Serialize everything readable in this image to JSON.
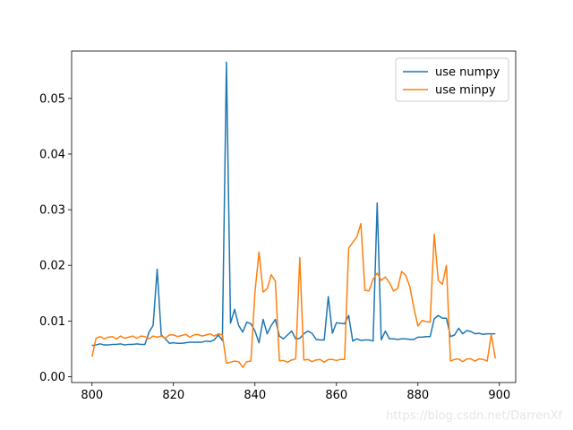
{
  "chart_data": {
    "type": "line",
    "xlim": [
      795,
      904
    ],
    "ylim": [
      -0.00105,
      0.0585
    ],
    "xticks": [
      800,
      820,
      840,
      860,
      880,
      900
    ],
    "yticks": [
      0.0,
      0.01,
      0.02,
      0.03,
      0.04,
      0.05
    ],
    "ytick_labels": [
      "0.00",
      "0.01",
      "0.02",
      "0.03",
      "0.04",
      "0.05"
    ],
    "grid": false,
    "legend_position": "upper-right",
    "x": [
      800,
      801,
      802,
      803,
      804,
      805,
      806,
      807,
      808,
      809,
      810,
      811,
      812,
      813,
      814,
      815,
      816,
      817,
      818,
      819,
      820,
      821,
      822,
      823,
      824,
      825,
      826,
      827,
      828,
      829,
      830,
      831,
      832,
      833,
      834,
      835,
      836,
      837,
      838,
      839,
      840,
      841,
      842,
      843,
      844,
      845,
      846,
      847,
      848,
      849,
      850,
      851,
      852,
      853,
      854,
      855,
      856,
      857,
      858,
      859,
      860,
      861,
      862,
      863,
      864,
      865,
      866,
      867,
      868,
      869,
      870,
      871,
      872,
      873,
      874,
      875,
      876,
      877,
      878,
      879,
      880,
      881,
      882,
      883,
      884,
      885,
      886,
      887,
      888,
      889,
      890,
      891,
      892,
      893,
      894,
      895,
      896,
      897,
      898,
      899
    ],
    "series": [
      {
        "name": "use numpy",
        "color": "#1f77b4",
        "values": [
          0.0056,
          0.0057,
          0.0059,
          0.0057,
          0.0057,
          0.0058,
          0.0058,
          0.0059,
          0.0057,
          0.0058,
          0.0058,
          0.0059,
          0.0058,
          0.0058,
          0.008,
          0.0092,
          0.0193,
          0.0075,
          0.0068,
          0.006,
          0.0061,
          0.006,
          0.006,
          0.0061,
          0.0062,
          0.0062,
          0.0062,
          0.0062,
          0.0064,
          0.0063,
          0.0066,
          0.0075,
          0.0065,
          0.0565,
          0.0096,
          0.0121,
          0.0092,
          0.008,
          0.0098,
          0.0095,
          0.0082,
          0.0061,
          0.0103,
          0.0077,
          0.0092,
          0.0103,
          0.0073,
          0.0068,
          0.0075,
          0.0082,
          0.0068,
          0.0069,
          0.0077,
          0.0082,
          0.0078,
          0.0067,
          0.0066,
          0.0066,
          0.0144,
          0.0078,
          0.0097,
          0.0096,
          0.0095,
          0.011,
          0.0064,
          0.0068,
          0.0065,
          0.0066,
          0.0066,
          0.0064,
          0.0312,
          0.0066,
          0.0082,
          0.0068,
          0.0068,
          0.0067,
          0.0068,
          0.0068,
          0.0067,
          0.0067,
          0.0071,
          0.0071,
          0.0072,
          0.0072,
          0.0104,
          0.011,
          0.0105,
          0.0105,
          0.0072,
          0.0075,
          0.0087,
          0.0077,
          0.0083,
          0.0081,
          0.0077,
          0.0078,
          0.0076,
          0.0077,
          0.0077,
          0.0077
        ]
      },
      {
        "name": "use minpy",
        "color": "#ff7f0e",
        "values": [
          0.0036,
          0.0069,
          0.0072,
          0.0068,
          0.0071,
          0.0072,
          0.0068,
          0.0073,
          0.0069,
          0.0071,
          0.0073,
          0.0069,
          0.0073,
          0.0072,
          0.0068,
          0.0073,
          0.0071,
          0.0073,
          0.0069,
          0.0075,
          0.0075,
          0.0072,
          0.0074,
          0.0076,
          0.0071,
          0.0075,
          0.0076,
          0.0073,
          0.0075,
          0.0077,
          0.0073,
          0.0077,
          0.0075,
          0.0024,
          0.0026,
          0.0028,
          0.0027,
          0.0017,
          0.0027,
          0.0028,
          0.0152,
          0.0224,
          0.0152,
          0.0158,
          0.0183,
          0.0172,
          0.0029,
          0.0029,
          0.0026,
          0.003,
          0.0032,
          0.0214,
          0.003,
          0.0031,
          0.0027,
          0.003,
          0.0031,
          0.0026,
          0.0031,
          0.0031,
          0.0029,
          0.0031,
          0.0031,
          0.0231,
          0.0241,
          0.0251,
          0.0275,
          0.0155,
          0.0154,
          0.0175,
          0.0186,
          0.0173,
          0.0179,
          0.0169,
          0.0154,
          0.0158,
          0.0189,
          0.0182,
          0.0162,
          0.0124,
          0.0091,
          0.0101,
          0.0099,
          0.0098,
          0.0256,
          0.0173,
          0.0166,
          0.02,
          0.0028,
          0.0031,
          0.0032,
          0.0027,
          0.0032,
          0.0032,
          0.0028,
          0.0032,
          0.0031,
          0.0028,
          0.0076,
          0.0033
        ]
      }
    ]
  },
  "watermark": "https://blog.csdn.net/DarrenXf"
}
